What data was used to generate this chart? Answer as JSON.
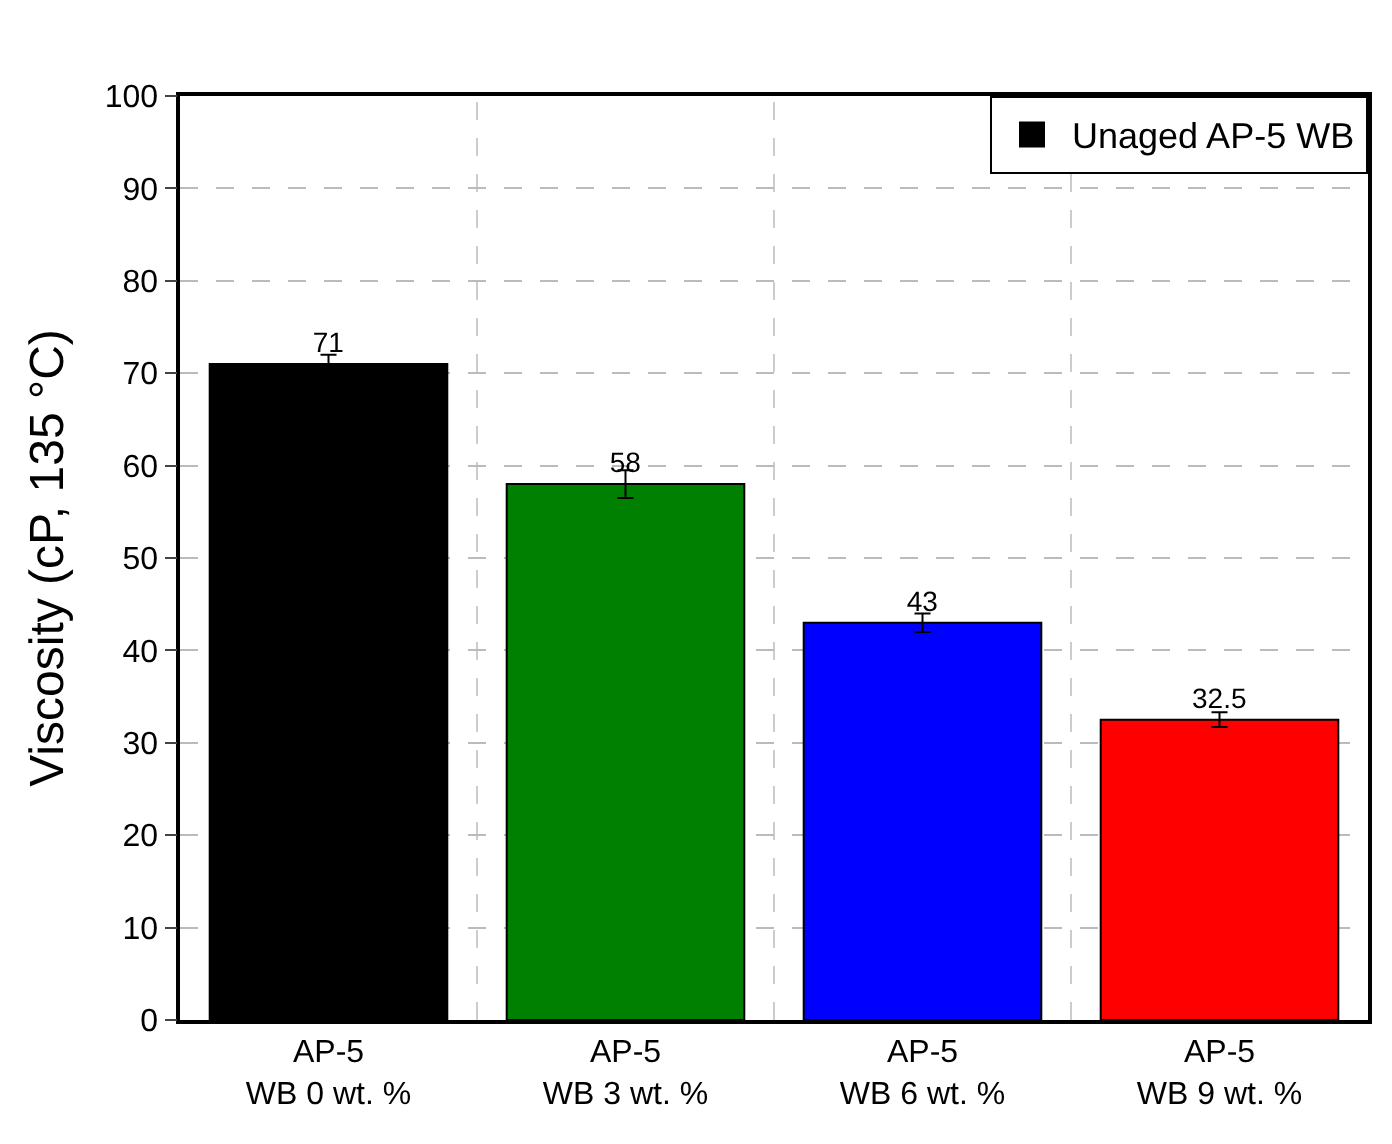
{
  "chart_data": {
    "type": "bar",
    "ylabel": "Viscosity (cP, 135 °C)",
    "categories": [
      "AP-5\nWB 0 wt. %",
      "AP-5\nWB 3 wt. %",
      "AP-5\nWB 6 wt. %",
      "AP-5\nWB 9 wt. %"
    ],
    "series": [
      {
        "name": "Unaged AP-5 WB",
        "colors": [
          "#000000",
          "#008000",
          "#0000ff",
          "#ff0000"
        ],
        "values": [
          71,
          58,
          43,
          32.5
        ],
        "errors": [
          1,
          1.5,
          1,
          0.8
        ]
      }
    ],
    "data_labels": true,
    "ylim": [
      0,
      100
    ],
    "yticks": [
      0,
      10,
      20,
      30,
      40,
      50,
      60,
      70,
      80,
      90,
      100
    ],
    "grid": true,
    "legend": "top right"
  }
}
